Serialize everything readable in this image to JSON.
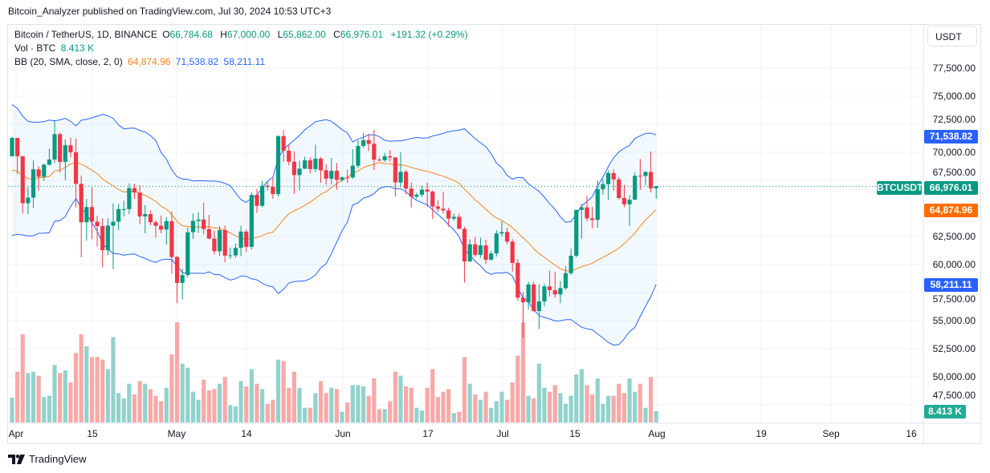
{
  "publisher_line": "Bitcoin_Analyzer published on TradingView.com, Jul 30, 2024 10:53 UTC+3",
  "legend": {
    "symbol": "Bitcoin / TetherUS, 1D, BINANCE",
    "open_label": "O",
    "open": "66,784.68",
    "high_label": "H",
    "high": "67,000.00",
    "low_label": "L",
    "low": "65,862.00",
    "close_label": "C",
    "close": "66,976.01",
    "change": "+191.32 (+0.29%)",
    "vol_label": "Vol · BTC",
    "vol_value": "8.413 K",
    "bb_label": "BB (20, SMA, close, 2, 0)",
    "bb_basis": "64,874.96",
    "bb_upper": "71,538.82",
    "bb_lower": "58,211.11"
  },
  "price_axis": {
    "unit": "USDT",
    "ticks": [
      "77,500.00",
      "75,000.00",
      "72,500.00",
      "70,000.00",
      "67,500.00",
      "62,500.00",
      "60,000.00",
      "57,500.00",
      "55,000.00",
      "52,500.00",
      "50,000.00",
      "47,500.00"
    ],
    "badges": {
      "bb_upper": "71,538.82",
      "last_price": "66,976.01",
      "symbol": "BTCUSDT",
      "bb_basis": "64,874.96",
      "bb_lower": "58,211.11",
      "volume": "8.413 K"
    }
  },
  "time_axis": [
    "Apr",
    "15",
    "May",
    "14",
    "Jun",
    "17",
    "Jul",
    "15",
    "Aug",
    "19",
    "Sep",
    "16"
  ],
  "footer": {
    "brand": "TradingView"
  },
  "colors": {
    "up": "#089981",
    "down": "#f23645",
    "bb_basis": "#f7841e",
    "bb_bands": "#2962ff",
    "bb_fill": "#2196f3"
  },
  "chart_data": {
    "type": "candlestick",
    "title": "Bitcoin / TetherUS, 1D, BINANCE",
    "ylim": [
      46500,
      79000
    ],
    "grid": true,
    "indicators": [
      "Volume",
      "Bollinger Bands (20, SMA, close, 2, 0)"
    ],
    "dates": [
      "Mar 31",
      "Apr 1",
      "Apr 2",
      "Apr 3",
      "Apr 4",
      "Apr 5",
      "Apr 6",
      "Apr 7",
      "Apr 8",
      "Apr 9",
      "Apr 10",
      "Apr 11",
      "Apr 12",
      "Apr 13",
      "Apr 14",
      "Apr 15",
      "Apr 16",
      "Apr 17",
      "Apr 18",
      "Apr 19",
      "Apr 20",
      "Apr 21",
      "Apr 22",
      "Apr 23",
      "Apr 24",
      "Apr 25",
      "Apr 26",
      "Apr 27",
      "Apr 28",
      "Apr 29",
      "Apr 30",
      "May 1",
      "May 2",
      "May 3",
      "May 4",
      "May 5",
      "May 6",
      "May 7",
      "May 8",
      "May 9",
      "May 10",
      "May 11",
      "May 12",
      "May 13",
      "May 14",
      "May 15",
      "May 16",
      "May 17",
      "May 18",
      "May 19",
      "May 20",
      "May 21",
      "May 22",
      "May 23",
      "May 24",
      "May 25",
      "May 26",
      "May 27",
      "May 28",
      "May 29",
      "May 30",
      "May 31",
      "Jun 1",
      "Jun 2",
      "Jun 3",
      "Jun 4",
      "Jun 5",
      "Jun 6",
      "Jun 7",
      "Jun 8",
      "Jun 9",
      "Jun 10",
      "Jun 11",
      "Jun 12",
      "Jun 13",
      "Jun 14",
      "Jun 15",
      "Jun 16",
      "Jun 17",
      "Jun 18",
      "Jun 19",
      "Jun 20",
      "Jun 21",
      "Jun 22",
      "Jun 23",
      "Jun 24",
      "Jun 25",
      "Jun 26",
      "Jun 27",
      "Jun 28",
      "Jun 29",
      "Jun 30",
      "Jul 1",
      "Jul 2",
      "Jul 3",
      "Jul 4",
      "Jul 5",
      "Jul 6",
      "Jul 7",
      "Jul 8",
      "Jul 9",
      "Jul 10",
      "Jul 11",
      "Jul 12",
      "Jul 13",
      "Jul 14",
      "Jul 15",
      "Jul 16",
      "Jul 17",
      "Jul 18",
      "Jul 19",
      "Jul 20",
      "Jul 21",
      "Jul 22",
      "Jul 23",
      "Jul 24",
      "Jul 25",
      "Jul 26",
      "Jul 27",
      "Jul 28",
      "Jul 29",
      "Jul 30"
    ],
    "open": [
      69647,
      71280,
      69650,
      65463,
      65963,
      68487,
      67820,
      68896,
      69360,
      71620,
      69146,
      70631,
      70007,
      67195,
      63765,
      65125,
      63819,
      63426,
      61277,
      63470,
      63818,
      64941,
      64941,
      66819,
      66414,
      64289,
      64498,
      63770,
      63461,
      63118,
      63866,
      60672,
      58364,
      59060,
      62882,
      63892,
      64012,
      63166,
      62312,
      61193,
      63074,
      60799,
      60825,
      61483,
      62938,
      61577,
      66206,
      65235,
      67024,
      66915,
      66274,
      71446,
      70148,
      69166,
      67969,
      68549,
      69290,
      68507,
      69436,
      68398,
      67652,
      68352,
      67540,
      67766,
      67765,
      68809,
      70567,
      71082,
      70757,
      69342,
      69305,
      69648,
      69540,
      67314,
      68263,
      66773,
      66043,
      66228,
      66676,
      66504,
      65175,
      64974,
      64828,
      64096,
      64252,
      63180,
      60277,
      61806,
      60864,
      61706,
      60427,
      60986,
      62772,
      62900,
      62041,
      60145,
      57043,
      56639,
      58231,
      55857,
      56714,
      58052,
      57717,
      57343,
      57899,
      59231,
      60787,
      64870,
      65097,
      64118,
      63974,
      66710,
      67163,
      68154,
      67585,
      65927,
      65372,
      65777,
      67908,
      67896,
      68249,
      66784.68
    ],
    "high": [
      71377,
      71288,
      69674,
      66903,
      69291,
      68756,
      69000,
      70326,
      72797,
      71758,
      71172,
      71305,
      71227,
      67931,
      65840,
      66867,
      64365,
      64127,
      64125,
      65450,
      65419,
      65700,
      67233,
      67199,
      67075,
      65297,
      64837,
      63923,
      64370,
      64228,
      64734,
      60780,
      59625,
      63320,
      64545,
      64646,
      65500,
      64422,
      63021,
      63421,
      63469,
      61515,
      61888,
      63450,
      63119,
      66444,
      66752,
      67451,
      67400,
      67700,
      71515,
      71979,
      70666,
      70096,
      69250,
      69610,
      69562,
      70687,
      69591,
      68935,
      69500,
      69044,
      67841,
      68460,
      70288,
      71063,
      71735,
      71625,
      71997,
      69524,
      69950,
      70195,
      69590,
      69999,
      68449,
      67316,
      66402,
      66998,
      67298,
      66588,
      65727,
      66482,
      65066,
      64520,
      64523,
      63369,
      62258,
      62487,
      62389,
      62225,
      61224,
      63058,
      63861,
      63288,
      62269,
      60498,
      57546,
      58475,
      58472,
      58236,
      58296,
      59470,
      59359,
      58526,
      59850,
      61420,
      64900,
      65388,
      66128,
      65133,
      67487,
      67650,
      68366,
      68480,
      67818,
      67102,
      66175,
      68200,
      69399,
      68318,
      70079,
      67000
    ],
    "low": [
      69624,
      68062,
      64550,
      64493,
      65064,
      66578,
      67447,
      68824,
      69043,
      68210,
      67518,
      69567,
      65086,
      60660,
      62134,
      62274,
      61600,
      59768,
      60833,
      59600,
      63090,
      64282,
      64500,
      65864,
      63589,
      62794,
      63500,
      62400,
      62781,
      61765,
      59191,
      56552,
      56911,
      58848,
      62274,
      62822,
      62700,
      62261,
      60888,
      60769,
      60187,
      60487,
      60610,
      60749,
      61142,
      61330,
      64602,
      65106,
      66600,
      65857,
      66060,
      69162,
      68843,
      66312,
      66600,
      68500,
      68128,
      68250,
      67277,
      67124,
      67128,
      66670,
      67386,
      67257,
      67612,
      68567,
      70390,
      70119,
      68420,
      69210,
      69130,
      69172,
      66051,
      66905,
      66251,
      65078,
      65871,
      66035,
      65130,
      64060,
      64693,
      64559,
      63379,
      63943,
      63178,
      58402,
      60239,
      60712,
      60606,
      60063,
      60383,
      60712,
      62497,
      61806,
      59380,
      56771,
      53485,
      56018,
      55793,
      54260,
      56290,
      57157,
      57052,
      56542,
      57756,
      59091,
      60632,
      62302,
      63854,
      63238,
      63300,
      66226,
      65777,
      66574,
      65810,
      65111,
      63456,
      65744,
      66650,
      67066,
      66428,
      65862
    ],
    "close": [
      71280,
      69650,
      65463,
      65963,
      68487,
      67820,
      68896,
      69360,
      71620,
      69146,
      70631,
      70007,
      67195,
      63765,
      65125,
      63819,
      63426,
      61277,
      63470,
      63818,
      64941,
      64941,
      66819,
      66414,
      64289,
      64498,
      63770,
      63461,
      63118,
      63866,
      60672,
      58364,
      59060,
      62882,
      63892,
      64012,
      63166,
      62312,
      61193,
      63074,
      60799,
      60825,
      61483,
      62938,
      61577,
      66206,
      65235,
      67024,
      66915,
      66274,
      71446,
      70148,
      69166,
      67969,
      68549,
      69290,
      68507,
      69436,
      68398,
      67652,
      68352,
      67540,
      67766,
      67765,
      68809,
      70567,
      71082,
      70757,
      69342,
      69305,
      69648,
      69540,
      67314,
      68263,
      66773,
      66043,
      66228,
      66676,
      66504,
      65175,
      64974,
      64828,
      64096,
      64252,
      63180,
      60277,
      61806,
      60864,
      61706,
      60427,
      60986,
      62772,
      62900,
      62041,
      60145,
      57043,
      56639,
      58231,
      55857,
      56714,
      58052,
      57717,
      57343,
      57899,
      59231,
      60787,
      64870,
      65097,
      64118,
      63974,
      66710,
      67163,
      68154,
      67585,
      65927,
      65372,
      65777,
      67908,
      67896,
      68249,
      66784,
      66976.01
    ],
    "volume_k": [
      18.6,
      38,
      66,
      37,
      38,
      35,
      19,
      20,
      43,
      37,
      39,
      30,
      52,
      66,
      57,
      49,
      49,
      47,
      40,
      64,
      22,
      18,
      29,
      21,
      31,
      29,
      25,
      20,
      16,
      26,
      51,
      75,
      44,
      41,
      23,
      17,
      32,
      24,
      25,
      29,
      34,
      13,
      12,
      31,
      27,
      40,
      29,
      25,
      14,
      17,
      47,
      46,
      26,
      38,
      26,
      11,
      11,
      22,
      31,
      22,
      26,
      25,
      8,
      15,
      28,
      28,
      27,
      20,
      33,
      10,
      10,
      16,
      38,
      35,
      27,
      26,
      11,
      9,
      26,
      40,
      19,
      23,
      25,
      7,
      8,
      49,
      29,
      21,
      17,
      23,
      11,
      16,
      23,
      17,
      30,
      50,
      75,
      20,
      18,
      44,
      26,
      23,
      28,
      22,
      14,
      20,
      36,
      40,
      28,
      21,
      33,
      14,
      20,
      20,
      29,
      22,
      33,
      23,
      29,
      11,
      34,
      8.413
    ]
  }
}
